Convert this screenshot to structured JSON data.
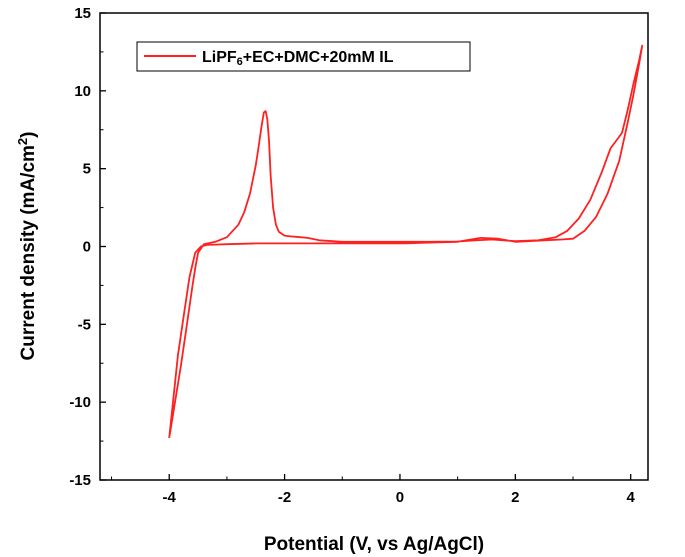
{
  "chart_data": {
    "type": "line",
    "title": "",
    "xlabel": "Potential (V, vs Ag/AgCl)",
    "ylabel": "Current density (mA/cm",
    "ylabel_sup": "2",
    "ylabel_close": ")",
    "xlim": [
      -5.2,
      4.3
    ],
    "ylim": [
      -15,
      15
    ],
    "xticks": [
      -4,
      -2,
      0,
      2,
      4
    ],
    "xtick_labels": [
      "-4",
      "-2",
      "0",
      "2",
      "4"
    ],
    "yticks": [
      15,
      10,
      5,
      0,
      -5,
      -10,
      -15
    ],
    "ytick_labels": [
      "15",
      "10",
      "5",
      "0",
      "-5",
      "-10",
      "-15"
    ],
    "grid": false,
    "legend_position": "top-left",
    "legend": {
      "prefix": "LiPF",
      "sub": "6",
      "suffix": "+EC+DMC+20mM IL"
    },
    "line_color": "#ff2020",
    "series": [
      {
        "name": "LiPF6+EC+DMC+20mM IL",
        "x": [
          -4.0,
          -3.9,
          -3.8,
          -3.7,
          -3.6,
          -3.55,
          -3.5,
          -3.4,
          -3.2,
          -3.0,
          -2.8,
          -2.7,
          -2.6,
          -2.5,
          -2.45,
          -2.4,
          -2.36,
          -2.33,
          -2.3,
          -2.27,
          -2.24,
          -2.2,
          -2.15,
          -2.1,
          -2.0,
          -1.9,
          -1.8,
          -1.6,
          -1.4,
          -1.0,
          -0.5,
          0.0,
          0.5,
          1.0,
          1.3,
          1.6,
          1.8,
          2.0,
          2.4,
          2.7,
          2.9,
          3.1,
          3.3,
          3.5,
          3.65,
          3.75,
          3.85,
          3.95,
          4.05,
          4.15,
          4.2,
          4.15,
          4.05,
          3.95,
          3.8,
          3.6,
          3.4,
          3.2,
          3.0,
          2.8,
          2.5,
          2.0,
          1.7,
          1.4,
          1.0,
          0.5,
          0.1,
          0.0,
          -0.5,
          -1.0,
          -1.5,
          -2.0,
          -2.5,
          -3.0,
          -3.2,
          -3.35,
          -3.45,
          -3.55,
          -3.65,
          -3.75,
          -3.85,
          -4.0
        ],
        "y": [
          -12.3,
          -10.0,
          -7.7,
          -5.2,
          -2.6,
          -1.4,
          -0.4,
          0.15,
          0.3,
          0.6,
          1.4,
          2.2,
          3.4,
          5.2,
          6.4,
          7.7,
          8.6,
          8.7,
          8.2,
          6.8,
          4.5,
          2.5,
          1.4,
          0.95,
          0.7,
          0.65,
          0.62,
          0.55,
          0.4,
          0.3,
          0.3,
          0.3,
          0.3,
          0.32,
          0.4,
          0.45,
          0.4,
          0.35,
          0.4,
          0.6,
          1.0,
          1.8,
          3.0,
          4.8,
          6.3,
          6.8,
          7.3,
          8.8,
          10.5,
          12.0,
          12.9,
          11.8,
          9.8,
          8.0,
          5.5,
          3.4,
          1.9,
          1.0,
          0.5,
          0.45,
          0.4,
          0.3,
          0.5,
          0.55,
          0.3,
          0.25,
          0.2,
          0.2,
          0.2,
          0.2,
          0.2,
          0.2,
          0.2,
          0.15,
          0.12,
          0.1,
          0.0,
          -0.4,
          -2.0,
          -4.5,
          -7.0,
          -12.3
        ]
      }
    ]
  }
}
